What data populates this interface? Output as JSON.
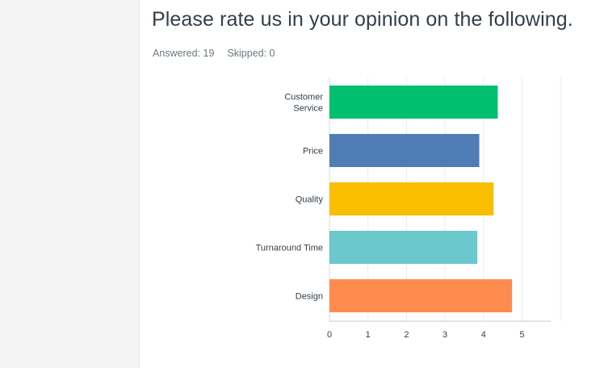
{
  "question": {
    "title": "Please rate us in your opinion on the following.",
    "answered_label": "Answered: 19",
    "skipped_label": "Skipped: 0"
  },
  "chart_data": {
    "type": "bar",
    "orientation": "horizontal",
    "categories": [
      [
        "Customer",
        "Service"
      ],
      [
        "Price"
      ],
      [
        "Quality"
      ],
      [
        "Turnaround Time"
      ],
      [
        "Design"
      ]
    ],
    "values": [
      4.37,
      3.89,
      4.26,
      3.84,
      4.74
    ],
    "colors": [
      "#00bf6f",
      "#507cb6",
      "#f9be00",
      "#6bc8cd",
      "#ff8b4f"
    ],
    "xlim": [
      0,
      6
    ],
    "x_ticks": [
      "0",
      "1",
      "2",
      "3",
      "4",
      "5",
      ""
    ],
    "grid": true
  }
}
